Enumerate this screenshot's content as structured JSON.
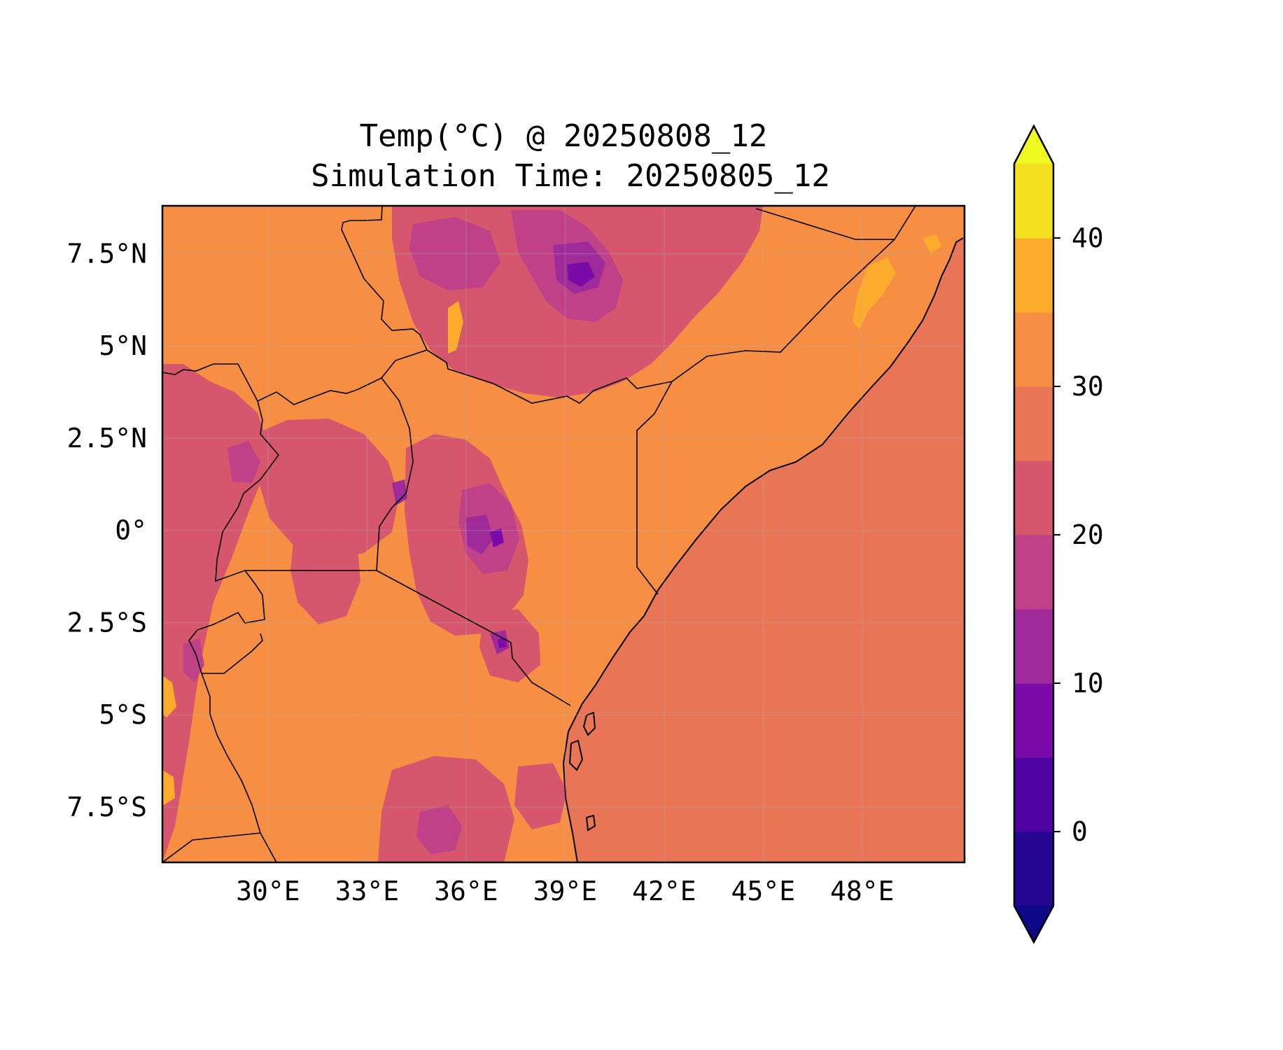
{
  "chart_data": {
    "type": "heatmap",
    "title": "Temp(°C) @ 20250808_12",
    "subtitle": "Simulation Time: 20250805_12",
    "xlabel": "",
    "ylabel": "",
    "xlim": [
      26.8,
      51.1
    ],
    "ylim": [
      -9.0,
      8.8
    ],
    "x_ticks": [
      30,
      33,
      36,
      39,
      42,
      45,
      48
    ],
    "x_tick_labels": [
      "30°E",
      "33°E",
      "36°E",
      "39°E",
      "42°E",
      "45°E",
      "48°E"
    ],
    "y_ticks": [
      7.5,
      5,
      2.5,
      0,
      -2.5,
      -5,
      -7.5
    ],
    "y_tick_labels": [
      "7.5°N",
      "5°N",
      "2.5°N",
      "0°",
      "2.5°S",
      "5°S",
      "7.5°S"
    ],
    "grid": true,
    "colorbar": {
      "levels": [
        -5,
        0,
        5,
        10,
        15,
        20,
        25,
        30,
        35,
        40,
        45
      ],
      "tick_values": [
        0,
        10,
        20,
        30,
        40
      ],
      "tick_labels": [
        "0",
        "10",
        "20",
        "30",
        "40"
      ],
      "colors": [
        "#240691",
        "#4e02a2",
        "#7a0ba8",
        "#9f2b9a",
        "#bf4288",
        "#d5566d",
        "#e97557",
        "#f68e44",
        "#fbac2c",
        "#f3e021"
      ],
      "under_color": "#0d0887",
      "over_color": "#f0f921",
      "extend": "both"
    },
    "field_colors": {
      "ocean": "#e97557",
      "land": "#f68e44",
      "highland": "#d5566d",
      "mountain": "#bf4288",
      "peak": "#9f2b9a",
      "summit": "#7a0ba8",
      "hot": "#fbac2c"
    }
  }
}
